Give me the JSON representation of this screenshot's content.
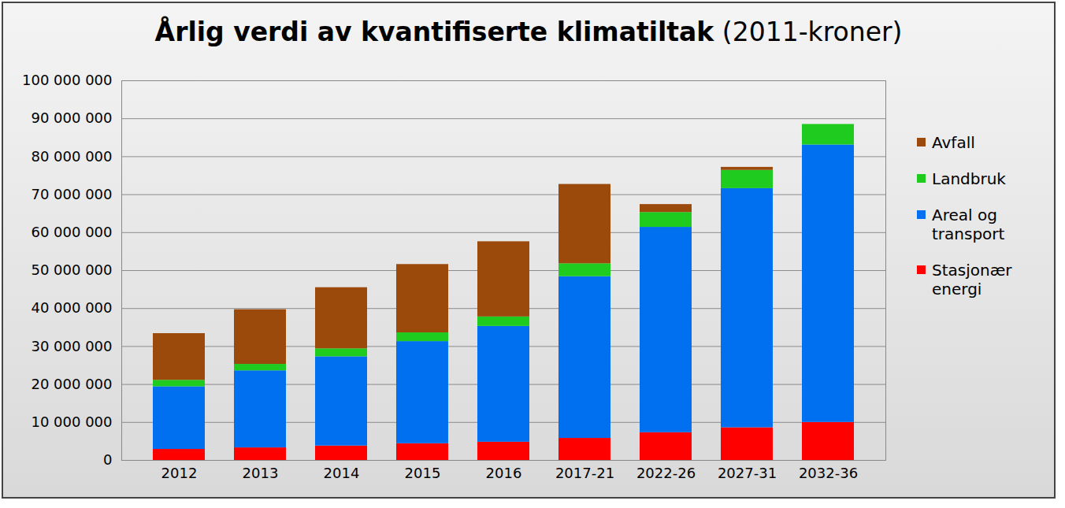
{
  "chart_data": {
    "type": "bar",
    "stacked": true,
    "title": "Årlig verdi av kvantifiserte klimatiltak (2011-kroner)",
    "categories": [
      "2012",
      "2013",
      "2014",
      "2015",
      "2016",
      "2017-21",
      "2022-26",
      "2027-31",
      "2032-36"
    ],
    "series": [
      {
        "name": "Stasjonær energi",
        "color": "#ff0000",
        "values": [
          2900000,
          3300000,
          3800000,
          4400000,
          4800000,
          5800000,
          7300000,
          8600000,
          10000000
        ]
      },
      {
        "name": "Areal og transport",
        "color": "#0070f0",
        "values": [
          16500000,
          20300000,
          23500000,
          26900000,
          30500000,
          42600000,
          54100000,
          63000000,
          73100000
        ]
      },
      {
        "name": "Landbruk",
        "color": "#1ecb1e",
        "values": [
          1700000,
          1700000,
          2100000,
          2300000,
          2500000,
          3400000,
          3900000,
          4800000,
          5400000
        ]
      },
      {
        "name": "Avfall",
        "color": "#9b4a0c",
        "values": [
          12300000,
          14400000,
          16100000,
          18000000,
          19800000,
          20900000,
          2100000,
          800000,
          0
        ]
      }
    ],
    "ylim": [
      0,
      100000000
    ],
    "yticks": [
      0,
      {
        "value": 10000000,
        "label": "10 000 000"
      },
      {
        "value": 20000000,
        "label": "20 000 000"
      },
      {
        "value": 30000000,
        "label": "30 000 000"
      },
      {
        "value": 40000000,
        "label": "40 000 000"
      },
      {
        "value": 50000000,
        "label": "50 000 000"
      },
      {
        "value": 60000000,
        "label": "60 000 000"
      },
      {
        "value": 70000000,
        "label": "70 000 000"
      },
      {
        "value": 80000000,
        "label": "80 000 000"
      },
      {
        "value": 90000000,
        "label": "90 000 000"
      },
      {
        "value": 100000000,
        "label": "100 000 000"
      }
    ],
    "grid": true,
    "legend": "right"
  }
}
